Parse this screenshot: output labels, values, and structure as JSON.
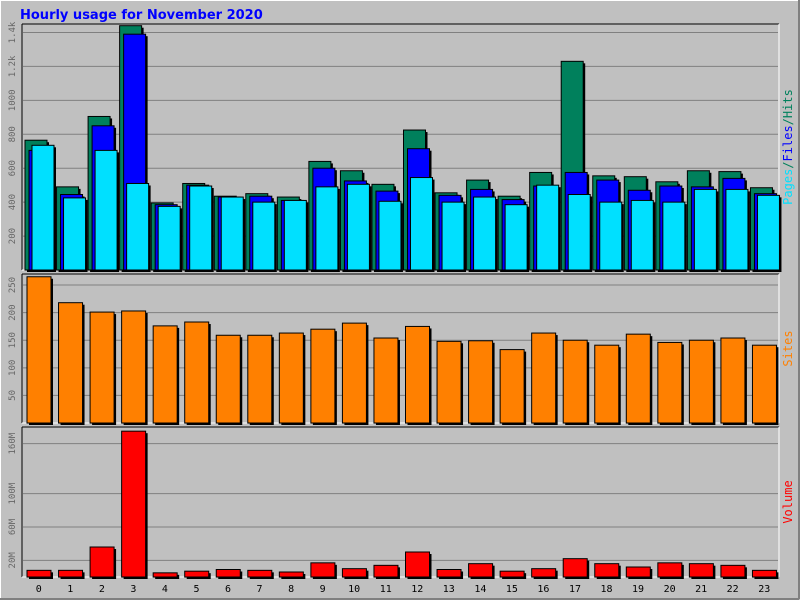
{
  "title": "Hourly usage for November 2020",
  "colors": {
    "background": "#c0c0c0",
    "hits": "#00805c",
    "files": "#0000ff",
    "pages": "#00e0ff",
    "sites": "#ff8000",
    "volume": "#ff0000",
    "title": "#0000ff",
    "grid": "#808080"
  },
  "chart_data": [
    {
      "type": "bar",
      "title": "Hourly usage for November 2020",
      "categories": [
        "0",
        "1",
        "2",
        "3",
        "4",
        "5",
        "6",
        "7",
        "8",
        "9",
        "10",
        "11",
        "12",
        "13",
        "14",
        "15",
        "16",
        "17",
        "18",
        "19",
        "20",
        "21",
        "22",
        "23"
      ],
      "ylabel_parts": [
        {
          "text": "Pages",
          "color": "#00e0ff"
        },
        {
          "text": "/",
          "color": "#00805c"
        },
        {
          "text": "Files",
          "color": "#0000ff"
        },
        {
          "text": "/",
          "color": "#00805c"
        },
        {
          "text": "Hits",
          "color": "#00805c"
        }
      ],
      "ylim": [
        0,
        1450
      ],
      "yticks": [
        200,
        400,
        600,
        800,
        1000,
        1200,
        1400
      ],
      "ytick_labels": [
        "200",
        "400",
        "600",
        "800",
        "1000",
        "1.2k",
        "1.4k"
      ],
      "series": [
        {
          "name": "Hits",
          "color": "#00805c",
          "values": [
            765,
            490,
            905,
            1440,
            395,
            510,
            435,
            450,
            430,
            640,
            585,
            505,
            825,
            455,
            530,
            435,
            575,
            1230,
            555,
            550,
            520,
            585,
            580,
            485
          ]
        },
        {
          "name": "Files",
          "color": "#0000ff",
          "values": [
            705,
            445,
            850,
            1390,
            385,
            500,
            430,
            435,
            410,
            600,
            525,
            465,
            715,
            440,
            475,
            415,
            495,
            575,
            530,
            470,
            495,
            490,
            540,
            450
          ]
        },
        {
          "name": "Pages",
          "color": "#00e0ff",
          "values": [
            735,
            425,
            705,
            510,
            375,
            495,
            430,
            400,
            410,
            490,
            505,
            405,
            545,
            400,
            430,
            385,
            500,
            445,
            400,
            410,
            400,
            475,
            475,
            440
          ]
        }
      ]
    },
    {
      "type": "bar",
      "categories": [
        "0",
        "1",
        "2",
        "3",
        "4",
        "5",
        "6",
        "7",
        "8",
        "9",
        "10",
        "11",
        "12",
        "13",
        "14",
        "15",
        "16",
        "17",
        "18",
        "19",
        "20",
        "21",
        "22",
        "23"
      ],
      "ylabel": "Sites",
      "ylim": [
        0,
        270
      ],
      "yticks": [
        50,
        100,
        150,
        200,
        250
      ],
      "ytick_labels": [
        "50",
        "100",
        "150",
        "200",
        "250"
      ],
      "series": [
        {
          "name": "Sites",
          "color": "#ff8000",
          "values": [
            265,
            218,
            201,
            203,
            176,
            183,
            159,
            159,
            163,
            170,
            181,
            154,
            175,
            148,
            149,
            133,
            163,
            150,
            141,
            161,
            146,
            150,
            154,
            141
          ]
        }
      ]
    },
    {
      "type": "bar",
      "categories": [
        "0",
        "1",
        "2",
        "3",
        "4",
        "5",
        "6",
        "7",
        "8",
        "9",
        "10",
        "11",
        "12",
        "13",
        "14",
        "15",
        "16",
        "17",
        "18",
        "19",
        "20",
        "21",
        "22",
        "23"
      ],
      "ylabel": "Volume",
      "ylim": [
        0,
        180
      ],
      "yticks": [
        20,
        60,
        100,
        160
      ],
      "ytick_labels": [
        "20M",
        "60M",
        "100M",
        "160M"
      ],
      "series": [
        {
          "name": "Volume",
          "color": "#ff0000",
          "values": [
            8,
            8,
            36,
            175,
            5,
            7,
            9,
            8,
            6,
            17,
            10,
            14,
            30,
            9,
            16,
            7,
            10,
            22,
            16,
            12,
            17,
            16,
            14,
            8
          ]
        }
      ]
    }
  ]
}
